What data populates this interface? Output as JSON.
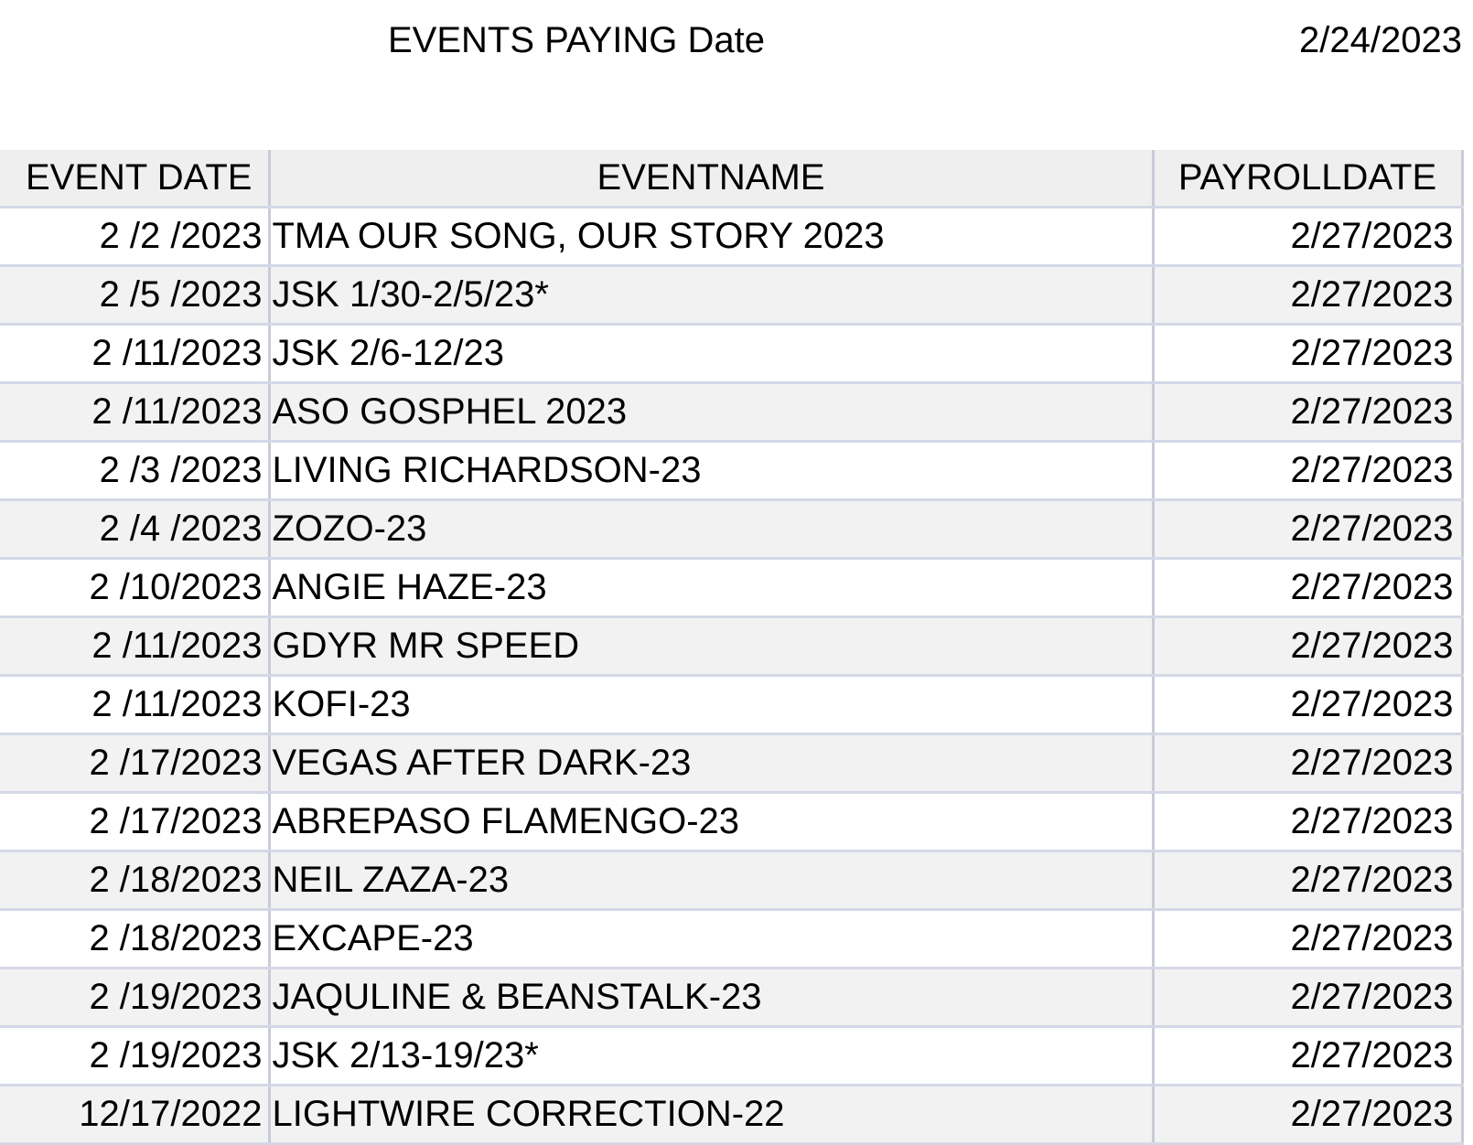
{
  "header": {
    "title": "EVENTS PAYING Date",
    "date": "2/24/2023"
  },
  "table": {
    "columns": [
      "EVENT DATE",
      "EVENTNAME",
      "PAYROLLDATE"
    ],
    "rows": [
      [
        "2 /2 /2023",
        "TMA OUR SONG, OUR STORY 2023",
        "2/27/2023"
      ],
      [
        "2 /5 /2023",
        "JSK 1/30-2/5/23*",
        "2/27/2023"
      ],
      [
        "2 /11/2023",
        "JSK 2/6-12/23",
        "2/27/2023"
      ],
      [
        "2 /11/2023",
        "ASO GOSPHEL 2023",
        "2/27/2023"
      ],
      [
        "2 /3 /2023",
        "LIVING RICHARDSON-23",
        "2/27/2023"
      ],
      [
        "2 /4 /2023",
        "ZOZO-23",
        "2/27/2023"
      ],
      [
        "2 /10/2023",
        "ANGIE HAZE-23",
        "2/27/2023"
      ],
      [
        "2 /11/2023",
        "GDYR MR SPEED",
        "2/27/2023"
      ],
      [
        "2 /11/2023",
        "KOFI-23",
        "2/27/2023"
      ],
      [
        "2 /17/2023",
        "VEGAS AFTER DARK-23",
        "2/27/2023"
      ],
      [
        "2 /17/2023",
        "ABREPASO FLAMENGO-23",
        "2/27/2023"
      ],
      [
        "2 /18/2023",
        "NEIL ZAZA-23",
        "2/27/2023"
      ],
      [
        "2 /18/2023",
        "EXCAPE-23",
        "2/27/2023"
      ],
      [
        "2 /19/2023",
        "JAQULINE & BEANSTALK-23",
        "2/27/2023"
      ],
      [
        "2 /19/2023",
        "JSK 2/13-19/23*",
        "2/27/2023"
      ],
      [
        "12/17/2022",
        "LIGHTWIRE CORRECTION-22",
        "2/27/2023"
      ]
    ]
  }
}
